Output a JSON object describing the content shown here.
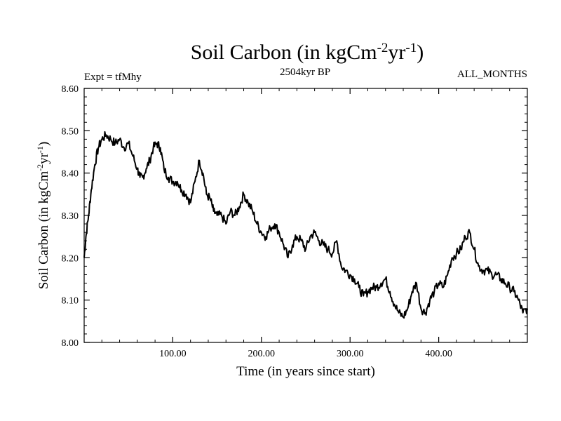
{
  "chart_data": {
    "type": "line",
    "title": "Soil Carbon (in kgCm",
    "title_sup1": "-2",
    "title_mid": "yr",
    "title_sup2": "-1",
    "title_end": ")",
    "subtitle_left": "Expt = tfMhy",
    "subtitle_center": "2504kyr BP",
    "subtitle_right": "ALL_MONTHS",
    "xlabel": "Time (in years since start)",
    "ylabel": "Soil Carbon (in kgCm",
    "ylabel_sup1": "-2",
    "ylabel_mid": "yr",
    "ylabel_sup2": "-1",
    "ylabel_end": ")",
    "xlim": [
      0,
      500
    ],
    "ylim": [
      8.0,
      8.6
    ],
    "xticks": [
      100,
      200,
      300,
      400
    ],
    "xtick_labels": [
      "100.00",
      "200.00",
      "300.00",
      "400.00"
    ],
    "yticks": [
      8.0,
      8.1,
      8.2,
      8.3,
      8.4,
      8.5,
      8.6
    ],
    "ytick_labels": [
      "8.00",
      "8.10",
      "8.20",
      "8.30",
      "8.40",
      "8.50",
      "8.60"
    ],
    "line_color": "#000000",
    "series": [
      {
        "name": "Soil Carbon",
        "x": [
          0,
          2,
          5,
          8,
          12,
          16,
          20,
          25,
          30,
          35,
          40,
          45,
          50,
          55,
          60,
          63,
          66,
          70,
          74,
          78,
          82,
          86,
          90,
          95,
          100,
          105,
          110,
          115,
          120,
          125,
          130,
          134,
          138,
          142,
          146,
          150,
          155,
          160,
          165,
          170,
          175,
          180,
          185,
          190,
          195,
          200,
          205,
          210,
          215,
          220,
          225,
          230,
          235,
          240,
          245,
          250,
          255,
          260,
          265,
          270,
          275,
          280,
          285,
          290,
          295,
          300,
          305,
          310,
          315,
          320,
          325,
          330,
          335,
          340,
          345,
          350,
          355,
          360,
          365,
          370,
          375,
          380,
          385,
          390,
          395,
          400,
          405,
          410,
          415,
          420,
          425,
          430,
          435,
          440,
          445,
          450,
          455,
          460,
          465,
          470,
          475,
          480,
          485,
          490,
          495,
          500
        ],
        "values": [
          8.2,
          8.25,
          8.3,
          8.36,
          8.42,
          8.46,
          8.48,
          8.49,
          8.48,
          8.47,
          8.48,
          8.46,
          8.47,
          8.44,
          8.41,
          8.39,
          8.39,
          8.41,
          8.43,
          8.46,
          8.47,
          8.46,
          8.41,
          8.39,
          8.38,
          8.38,
          8.36,
          8.35,
          8.33,
          8.38,
          8.43,
          8.4,
          8.35,
          8.34,
          8.31,
          8.3,
          8.3,
          8.28,
          8.31,
          8.3,
          8.32,
          8.35,
          8.33,
          8.31,
          8.28,
          8.26,
          8.25,
          8.27,
          8.28,
          8.26,
          8.23,
          8.2,
          8.23,
          8.25,
          8.24,
          8.22,
          8.25,
          8.26,
          8.24,
          8.23,
          8.22,
          8.21,
          8.24,
          8.18,
          8.17,
          8.16,
          8.15,
          8.13,
          8.11,
          8.12,
          8.13,
          8.13,
          8.14,
          8.15,
          8.12,
          8.09,
          8.07,
          8.06,
          8.08,
          8.12,
          8.14,
          8.08,
          8.07,
          8.1,
          8.12,
          8.14,
          8.13,
          8.16,
          8.2,
          8.21,
          8.22,
          8.25,
          8.26,
          8.22,
          8.18,
          8.17,
          8.17,
          8.16,
          8.16,
          8.15,
          8.14,
          8.13,
          8.12,
          8.1,
          8.07,
          8.08
        ]
      }
    ]
  }
}
